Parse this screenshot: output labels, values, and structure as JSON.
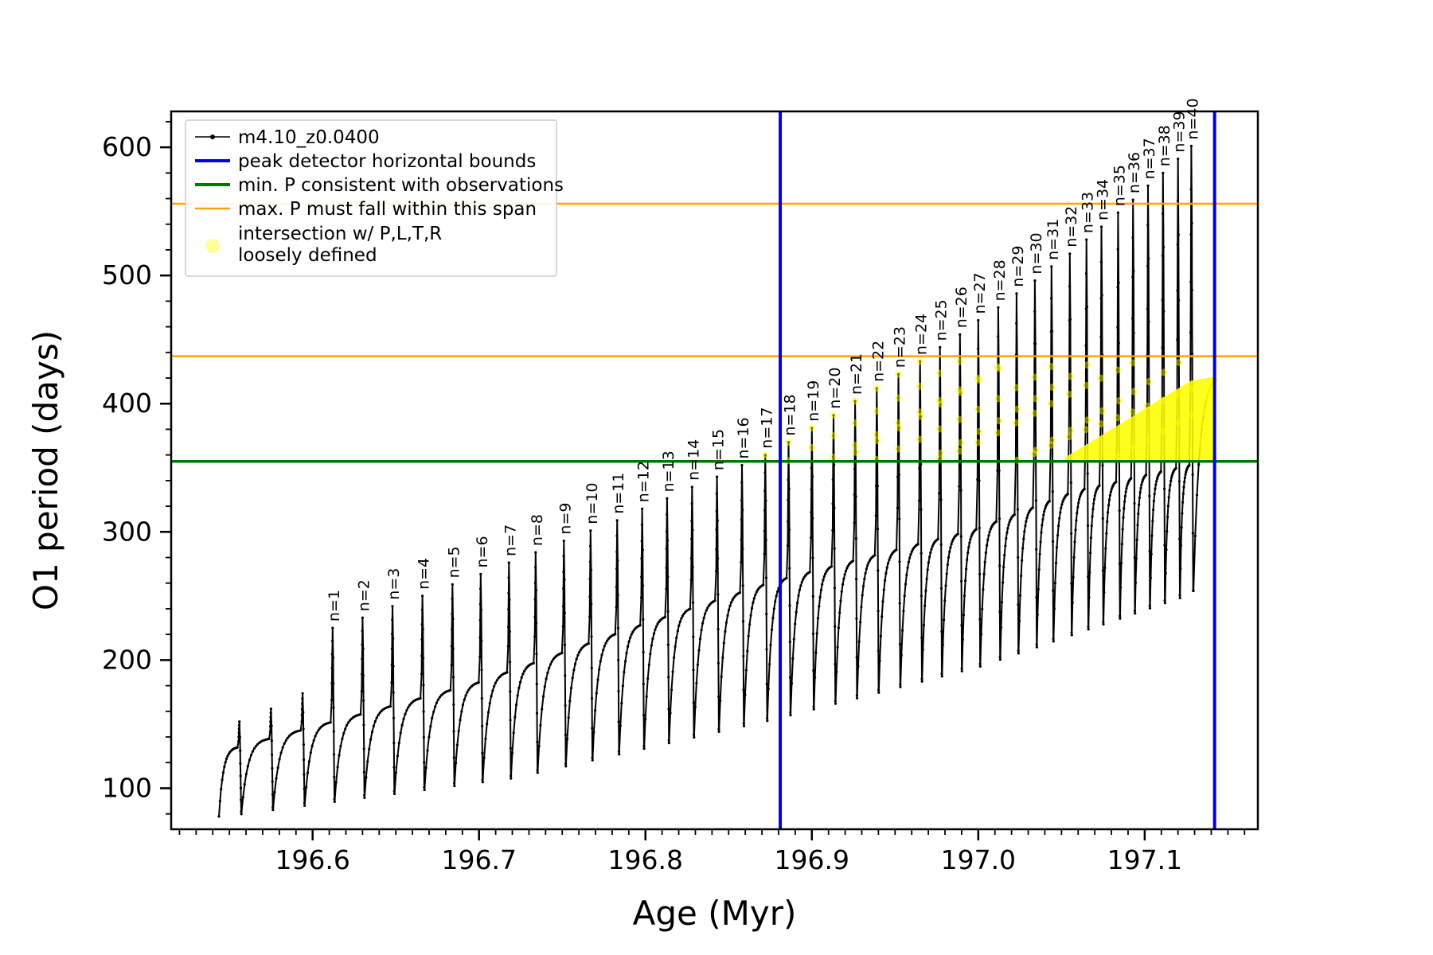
{
  "chart_data": {
    "type": "line",
    "title": "",
    "xlabel": "Age (Myr)",
    "ylabel": "O1 period (days)",
    "xlim": [
      196.515,
      197.168
    ],
    "ylim": [
      68,
      628
    ],
    "xticks": [
      196.6,
      196.7,
      196.8,
      196.9,
      197.0,
      197.1
    ],
    "xtick_labels": [
      "196.6",
      "196.7",
      "196.8",
      "196.9",
      "197.0",
      "197.1"
    ],
    "yticks": [
      100,
      200,
      300,
      400,
      500,
      600
    ],
    "ytick_labels": [
      "100",
      "200",
      "300",
      "400",
      "500",
      "600"
    ],
    "x_minor_step": 0.01,
    "y_minor_step": 20,
    "grid": false,
    "legend": {
      "position": "upper left",
      "entries": [
        {
          "label": "m4.10_z0.0400",
          "type": "line-marker",
          "color": "#000000",
          "lw": 1.5
        },
        {
          "label": "peak detector horizontal bounds",
          "type": "line",
          "color": "#0000ee",
          "lw": 4
        },
        {
          "label": "min. P consistent with observations",
          "type": "line",
          "color": "#007800",
          "lw": 4
        },
        {
          "label": "max. P must fall within this span",
          "type": "line",
          "color": "#ffa500",
          "lw": 2.5
        },
        {
          "label": "intersection w/ P,L,T,R\nloosely defined",
          "type": "marker",
          "color": "#ffff00",
          "lw": 0
        }
      ]
    },
    "vlines": [
      {
        "x": 196.881,
        "color": "#0000ee",
        "width": 4,
        "name": "peak-bound-left"
      },
      {
        "x": 197.142,
        "color": "#0000ee",
        "width": 4,
        "name": "peak-bound-right"
      }
    ],
    "hlines": [
      {
        "y": 355,
        "color": "#007800",
        "width": 3.5,
        "name": "min-period-line"
      },
      {
        "y": 437,
        "color": "#ffa500",
        "width": 2.5,
        "name": "max-span-lower"
      },
      {
        "y": 556,
        "color": "#ffa500",
        "width": 2.5,
        "name": "max-span-upper"
      }
    ],
    "series": {
      "name": "m4.10_z0.0400",
      "color": "#000000",
      "cycles": [
        {
          "x": 196.556,
          "peak": 152,
          "label": ""
        },
        {
          "x": 196.575,
          "peak": 162,
          "label": ""
        },
        {
          "x": 196.594,
          "peak": 174,
          "label": ""
        },
        {
          "x": 196.612,
          "peak": 225,
          "label": "n=1"
        },
        {
          "x": 196.63,
          "peak": 233,
          "label": "n=2"
        },
        {
          "x": 196.648,
          "peak": 242,
          "label": "n=3"
        },
        {
          "x": 196.666,
          "peak": 250,
          "label": "n=4"
        },
        {
          "x": 196.684,
          "peak": 259,
          "label": "n=5"
        },
        {
          "x": 196.701,
          "peak": 267,
          "label": "n=6"
        },
        {
          "x": 196.718,
          "peak": 276,
          "label": "n=7"
        },
        {
          "x": 196.734,
          "peak": 284,
          "label": "n=8"
        },
        {
          "x": 196.751,
          "peak": 293,
          "label": "n=9"
        },
        {
          "x": 196.767,
          "peak": 301,
          "label": "n=10"
        },
        {
          "x": 196.783,
          "peak": 309,
          "label": "n=11"
        },
        {
          "x": 196.798,
          "peak": 318,
          "label": "n=12"
        },
        {
          "x": 196.813,
          "peak": 326,
          "label": "n=13"
        },
        {
          "x": 196.828,
          "peak": 335,
          "label": "n=14"
        },
        {
          "x": 196.843,
          "peak": 343,
          "label": "n=15"
        },
        {
          "x": 196.858,
          "peak": 352,
          "label": "n=16"
        },
        {
          "x": 196.872,
          "peak": 360,
          "label": "n=17"
        },
        {
          "x": 196.886,
          "peak": 370,
          "label": "n=18"
        },
        {
          "x": 196.9,
          "peak": 381,
          "label": "n=19"
        },
        {
          "x": 196.913,
          "peak": 391,
          "label": "n=20"
        },
        {
          "x": 196.926,
          "peak": 402,
          "label": "n=21"
        },
        {
          "x": 196.939,
          "peak": 412,
          "label": "n=22"
        },
        {
          "x": 196.952,
          "peak": 423,
          "label": "n=23"
        },
        {
          "x": 196.965,
          "peak": 433,
          "label": "n=24"
        },
        {
          "x": 196.977,
          "peak": 444,
          "label": "n=25"
        },
        {
          "x": 196.989,
          "peak": 454,
          "label": "n=26"
        },
        {
          "x": 197.0,
          "peak": 465,
          "label": "n=27"
        },
        {
          "x": 197.012,
          "peak": 475,
          "label": "n=28"
        },
        {
          "x": 197.023,
          "peak": 486,
          "label": "n=29"
        },
        {
          "x": 197.034,
          "peak": 496,
          "label": "n=30"
        },
        {
          "x": 197.044,
          "peak": 507,
          "label": "n=31"
        },
        {
          "x": 197.055,
          "peak": 517,
          "label": "n=32"
        },
        {
          "x": 197.065,
          "peak": 528,
          "label": "n=33"
        },
        {
          "x": 197.074,
          "peak": 538,
          "label": "n=34"
        },
        {
          "x": 197.084,
          "peak": 549,
          "label": "n=35"
        },
        {
          "x": 197.093,
          "peak": 559,
          "label": "n=36"
        },
        {
          "x": 197.102,
          "peak": 570,
          "label": "n=37"
        },
        {
          "x": 197.111,
          "peak": 580,
          "label": "n=38"
        },
        {
          "x": 197.12,
          "peak": 591,
          "label": "n=39"
        },
        {
          "x": 197.128,
          "peak": 601,
          "label": "n=40"
        }
      ]
    },
    "trough_anchors": [
      [
        196.545,
        78
      ],
      [
        196.72,
        108
      ],
      [
        196.88,
        155
      ],
      [
        197.0,
        195
      ],
      [
        197.128,
        252
      ]
    ],
    "hump_anchors": [
      [
        196.545,
        128
      ],
      [
        196.7,
        182
      ],
      [
        196.8,
        228
      ],
      [
        196.88,
        262
      ],
      [
        197.0,
        302
      ],
      [
        197.06,
        332
      ],
      [
        197.128,
        352
      ]
    ],
    "yellow_scatter": {
      "label": "intersection w/ P,L,T,R\nloosely defined",
      "color": "#ffff00",
      "alpha": 0.45,
      "band_x": [
        196.868,
        197.142
      ],
      "band_y": [
        355,
        437
      ],
      "blob": [
        [
          197.052,
          356
        ],
        [
          197.142,
          356
        ],
        [
          197.142,
          421
        ],
        [
          197.128,
          418
        ],
        [
          197.11,
          404
        ],
        [
          197.09,
          388
        ],
        [
          197.07,
          372
        ],
        [
          197.052,
          358
        ]
      ]
    },
    "tail": {
      "x_end": 197.142,
      "y_end": 418,
      "y_min": 254
    },
    "annotation_fontsize": 19
  }
}
